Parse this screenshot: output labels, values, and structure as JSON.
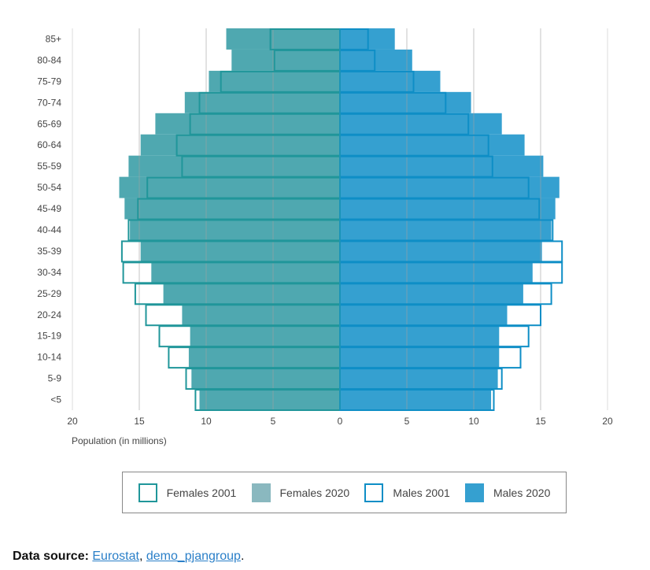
{
  "chart_data": {
    "type": "bar",
    "orientation": "horizontal-pyramid",
    "xlabel": "Population (in millions)",
    "xlim": [
      -20,
      20
    ],
    "xticks": [
      "20",
      "15",
      "10",
      "5",
      "0",
      "5",
      "10",
      "15",
      "20"
    ],
    "grid": true,
    "legend_position": "bottom",
    "categories": [
      "85+",
      "80-84",
      "75-79",
      "70-74",
      "65-69",
      "60-64",
      "55-59",
      "50-54",
      "45-49",
      "40-44",
      "35-39",
      "30-34",
      "25-29",
      "20-24",
      "15-19",
      "10-14",
      "5-9",
      "<5"
    ],
    "series": [
      {
        "name": "Females 2001",
        "side": "left",
        "style": "outline",
        "color": "#20969a",
        "values": [
          5.2,
          4.9,
          8.9,
          10.5,
          11.2,
          12.2,
          11.8,
          14.4,
          15.1,
          15.8,
          16.3,
          16.2,
          15.3,
          14.5,
          13.5,
          12.8,
          11.5,
          10.8
        ]
      },
      {
        "name": "Females 2020",
        "side": "left",
        "style": "filled",
        "color": "#4fa8b0",
        "values": [
          8.5,
          8.1,
          9.8,
          11.6,
          13.8,
          14.9,
          15.8,
          16.5,
          16.1,
          15.7,
          14.9,
          14.1,
          13.2,
          11.8,
          11.2,
          11.3,
          11.1,
          10.5
        ]
      },
      {
        "name": "Males 2001",
        "side": "right",
        "style": "outline",
        "color": "#0e8ec6",
        "values": [
          2.1,
          2.6,
          5.5,
          7.9,
          9.6,
          11.1,
          11.4,
          14.1,
          14.9,
          15.9,
          16.6,
          16.6,
          15.8,
          15.0,
          14.1,
          13.5,
          12.1,
          11.5
        ]
      },
      {
        "name": "Males 2020",
        "side": "right",
        "style": "filled",
        "color": "#35a0d0",
        "values": [
          4.1,
          5.4,
          7.5,
          9.8,
          12.1,
          13.8,
          15.2,
          16.4,
          16.1,
          15.8,
          15.1,
          14.4,
          13.7,
          12.5,
          11.9,
          11.9,
          11.8,
          11.3
        ]
      }
    ]
  },
  "legend": {
    "items": [
      {
        "label": "Females 2001",
        "fill": "#ffffff",
        "border": "#20969a"
      },
      {
        "label": "Females 2020",
        "fill": "#8ab8bf",
        "border": "#8ab8bf"
      },
      {
        "label": "Males 2001",
        "fill": "#ffffff",
        "border": "#0e8ec6"
      },
      {
        "label": "Males 2020",
        "fill": "#35a0d0",
        "border": "#35a0d0"
      }
    ]
  },
  "source": {
    "prefix": "Data source: ",
    "link1": "Eurostat",
    "sep": ", ",
    "link2": "demo_pjangroup",
    "suffix": "."
  }
}
